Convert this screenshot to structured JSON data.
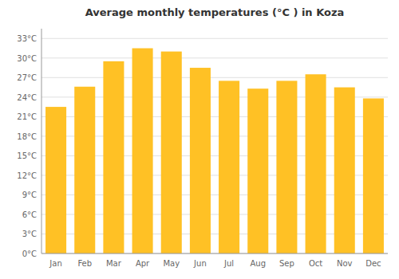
{
  "chart_data": {
    "type": "bar",
    "title": "Average monthly temperatures (°C ) in Koza",
    "categories": [
      "Jan",
      "Feb",
      "Mar",
      "Apr",
      "May",
      "Jun",
      "Jul",
      "Aug",
      "Sep",
      "Oct",
      "Nov",
      "Dec"
    ],
    "values": [
      22.5,
      25.6,
      29.5,
      31.5,
      31.0,
      28.5,
      26.5,
      25.3,
      26.5,
      27.5,
      25.5,
      23.8
    ],
    "color": "#FFC125",
    "ylim": [
      0,
      34.5
    ],
    "yticks": [
      {
        "value": 0,
        "label": "0°C"
      },
      {
        "value": 3,
        "label": "3°C"
      },
      {
        "value": 6,
        "label": "6°C"
      },
      {
        "value": 9,
        "label": "9°C"
      },
      {
        "value": 12,
        "label": "12°C"
      },
      {
        "value": 15,
        "label": "15°C"
      },
      {
        "value": 18,
        "label": "18°C"
      },
      {
        "value": 21,
        "label": "21°C"
      },
      {
        "value": 24,
        "label": "24°C"
      },
      {
        "value": 27,
        "label": "27°C"
      },
      {
        "value": 30,
        "label": "30°C"
      },
      {
        "value": 33,
        "label": "33°C"
      }
    ],
    "grid": true
  }
}
